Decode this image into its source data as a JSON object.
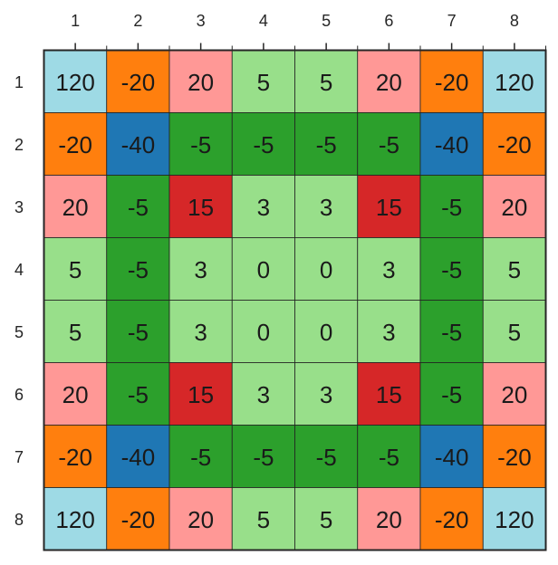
{
  "chart_data": {
    "type": "heatmap",
    "x_ticks": [
      "1",
      "2",
      "3",
      "4",
      "5",
      "6",
      "7",
      "8"
    ],
    "y_ticks": [
      "1",
      "2",
      "3",
      "4",
      "5",
      "6",
      "7",
      "8"
    ],
    "x_tick_position": "top",
    "grid": true,
    "values": [
      [
        120,
        -20,
        20,
        5,
        5,
        20,
        -20,
        120
      ],
      [
        -20,
        -40,
        -5,
        -5,
        -5,
        -5,
        -40,
        -20
      ],
      [
        20,
        -5,
        15,
        3,
        3,
        15,
        -5,
        20
      ],
      [
        5,
        -5,
        3,
        0,
        0,
        3,
        -5,
        5
      ],
      [
        5,
        -5,
        3,
        0,
        0,
        3,
        -5,
        5
      ],
      [
        20,
        -5,
        15,
        3,
        3,
        15,
        -5,
        20
      ],
      [
        -20,
        -40,
        -5,
        -5,
        -5,
        -5,
        -40,
        -20
      ],
      [
        120,
        -20,
        20,
        5,
        5,
        20,
        -20,
        120
      ]
    ],
    "color_map": {
      "120": "#9edae5",
      "-20": "#ff7f0e",
      "20": "#ff9896",
      "5": "#98df8a",
      "3": "#98df8a",
      "0": "#98df8a",
      "-5": "#2ca02c",
      "-40": "#1f77b4",
      "15": "#d62728"
    }
  }
}
